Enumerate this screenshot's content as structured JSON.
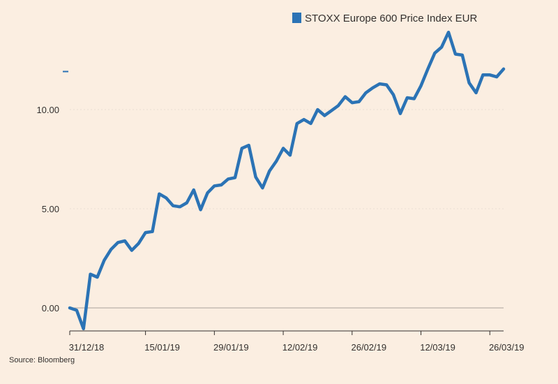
{
  "source": "Source: Bloomberg",
  "chart_data": {
    "type": "line",
    "title": "",
    "xlabel": "",
    "ylabel": "",
    "ylim": [
      -1.1,
      14.0
    ],
    "yticks": [
      {
        "value": 0,
        "label": "0.00"
      },
      {
        "value": 5,
        "label": "5.00"
      },
      {
        "value": 10,
        "label": "10.00"
      }
    ],
    "xticks": [
      "31/12/18",
      "15/01/19",
      "29/01/19",
      "12/02/19",
      "26/02/19",
      "12/03/19",
      "26/03/19"
    ],
    "grid": "horizontal dotted",
    "legend_position": "top-right",
    "colors": {
      "series": "#2b73b5",
      "background": "#fbeee1",
      "zero_line": "#a8a29b",
      "grid": "#e8ddd2"
    },
    "series": [
      {
        "name": "STOXX Europe 600 Price Index EUR",
        "x": [
          "31/12/18",
          "01/01/19",
          "02/01/19",
          "03/01/19",
          "04/01/19",
          "07/01/19",
          "08/01/19",
          "09/01/19",
          "10/01/19",
          "11/01/19",
          "14/01/19",
          "15/01/19",
          "16/01/19",
          "17/01/19",
          "18/01/19",
          "21/01/19",
          "22/01/19",
          "23/01/19",
          "24/01/19",
          "25/01/19",
          "28/01/19",
          "29/01/19",
          "30/01/19",
          "31/01/19",
          "01/02/19",
          "04/02/19",
          "05/02/19",
          "06/02/19",
          "07/02/19",
          "08/02/19",
          "11/02/19",
          "12/02/19",
          "13/02/19",
          "14/02/19",
          "15/02/19",
          "18/02/19",
          "19/02/19",
          "20/02/19",
          "21/02/19",
          "22/02/19",
          "25/02/19",
          "26/02/19",
          "27/02/19",
          "28/02/19",
          "01/03/19",
          "04/03/19",
          "05/03/19",
          "06/03/19",
          "07/03/19",
          "08/03/19",
          "11/03/19",
          "12/03/19",
          "13/03/19",
          "14/03/19",
          "15/03/19",
          "18/03/19",
          "19/03/19",
          "20/03/19",
          "21/03/19",
          "22/03/19",
          "25/03/19",
          "26/03/19",
          "27/03/19",
          "28/03/19"
        ],
        "values": [
          0.0,
          -0.12,
          -1.05,
          1.7,
          1.55,
          2.4,
          2.95,
          3.3,
          3.38,
          2.9,
          3.25,
          3.8,
          3.85,
          5.75,
          5.55,
          5.15,
          5.1,
          5.3,
          5.95,
          4.95,
          5.8,
          6.15,
          6.2,
          6.5,
          6.57,
          8.05,
          8.2,
          6.6,
          6.05,
          6.9,
          7.4,
          8.05,
          7.7,
          9.3,
          9.5,
          9.3,
          10.0,
          9.7,
          9.95,
          10.2,
          10.65,
          10.35,
          10.4,
          10.85,
          11.1,
          11.3,
          11.25,
          10.75,
          9.8,
          10.6,
          10.55,
          11.2,
          12.05,
          12.85,
          13.15,
          13.9,
          12.8,
          12.75,
          11.35,
          10.85,
          11.75,
          11.75,
          11.65,
          12.05
        ]
      }
    ]
  }
}
